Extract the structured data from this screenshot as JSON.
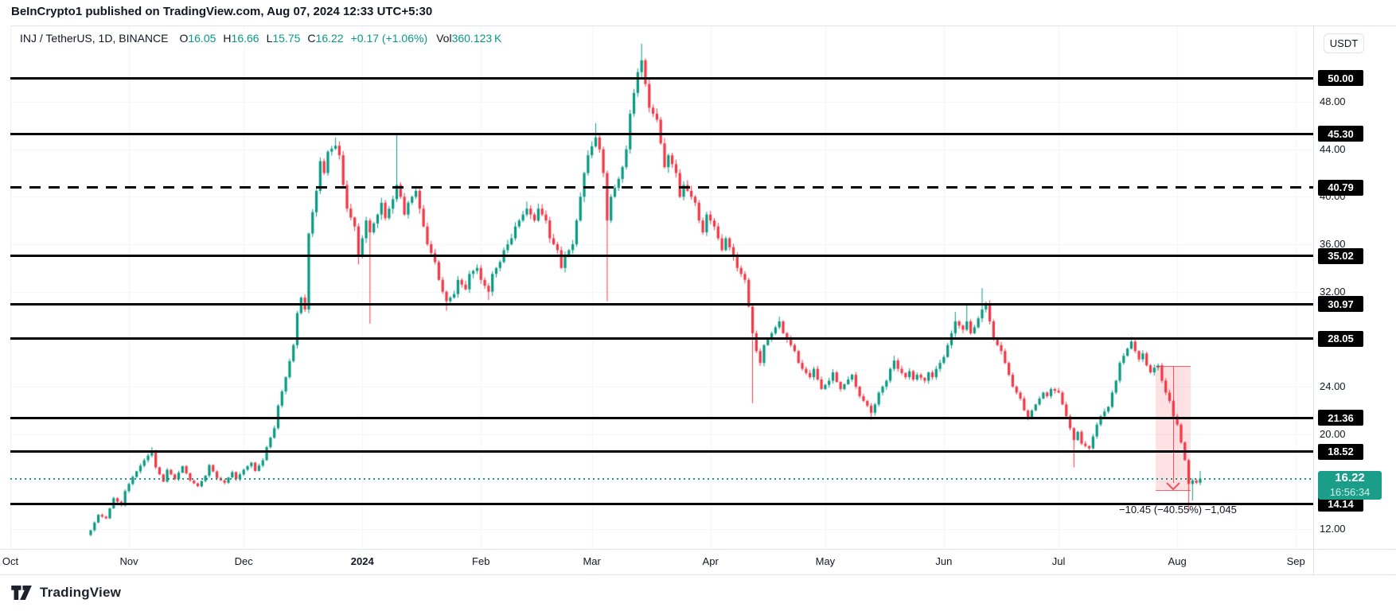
{
  "header": {
    "title": "BeInCrypto1 published on TradingView.com, Aug 07, 2024 12:33 UTC+5:30"
  },
  "legend": {
    "symbol": "INJ / TetherUS, 1D, BINANCE",
    "o_label": "O",
    "o": "16.05",
    "h_label": "H",
    "h": "16.66",
    "l_label": "L",
    "l": "15.75",
    "c_label": "C",
    "c": "16.22",
    "change": "+0.17 (+1.06%)",
    "vol_label": "Vol",
    "vol": "360.123 K"
  },
  "price_axis": {
    "currency_button": "USDT"
  },
  "footer": {
    "brand": "TradingView"
  },
  "colors": {
    "up": "#089981",
    "down": "#f23645",
    "current_label_bg": "#1a9e8a",
    "level_line": "#000000",
    "measure_fill": "rgba(242,54,69,0.15)",
    "measure_stroke": "#f23645",
    "grid": "#f0f3fa",
    "text": "#131722",
    "border": "#e0e3eb"
  },
  "chart_data": {
    "type": "candlestick",
    "symbol": "INJ / TetherUS",
    "interval": "1D",
    "exchange": "BINANCE",
    "last_candle": {
      "open": 16.05,
      "high": 16.66,
      "low": 15.75,
      "close": 16.22,
      "change": "+0.17 (+1.06%)",
      "volume": "360.123 K"
    },
    "current": {
      "price": 16.22,
      "label": "16.22",
      "countdown": "16:56:34"
    },
    "axis": {
      "price_ticks": [
        {
          "label": "48.00",
          "price": 48
        },
        {
          "label": "44.00",
          "price": 44
        },
        {
          "label": "40.00",
          "price": 40
        },
        {
          "label": "36.00",
          "price": 36
        },
        {
          "label": "32.00",
          "price": 32
        },
        {
          "label": "24.00",
          "price": 24
        },
        {
          "label": "20.00",
          "price": 20
        },
        {
          "label": "12.00",
          "price": 12
        }
      ],
      "grid_prices": [
        48,
        44,
        40,
        36,
        32,
        28,
        24,
        20,
        16,
        12
      ],
      "time_labels": [
        {
          "label": "Oct",
          "day": 0
        },
        {
          "label": "Nov",
          "day": 31
        },
        {
          "label": "Dec",
          "day": 61
        },
        {
          "label": "2024",
          "day": 92,
          "bold": true
        },
        {
          "label": "Feb",
          "day": 123
        },
        {
          "label": "Mar",
          "day": 152
        },
        {
          "label": "Apr",
          "day": 183
        },
        {
          "label": "May",
          "day": 213
        },
        {
          "label": "Jun",
          "day": 244
        },
        {
          "label": "Jul",
          "day": 274
        },
        {
          "label": "Aug",
          "day": 305
        },
        {
          "label": "Sep",
          "day": 336
        }
      ]
    },
    "levels": [
      {
        "label": "50.00",
        "price": 50.0,
        "style": "solid"
      },
      {
        "label": "45.30",
        "price": 45.3,
        "style": "solid"
      },
      {
        "label": "40.79",
        "price": 40.79,
        "style": "dashed"
      },
      {
        "label": "35.02",
        "price": 35.02,
        "style": "solid"
      },
      {
        "label": "30.97",
        "price": 30.97,
        "style": "solid"
      },
      {
        "label": "28.05",
        "price": 28.05,
        "style": "solid"
      },
      {
        "label": "21.36",
        "price": 21.36,
        "style": "solid"
      },
      {
        "label": "18.52",
        "price": 18.52,
        "style": "solid"
      },
      {
        "label": "14.14",
        "price": 14.14,
        "style": "solid"
      }
    ],
    "measure": {
      "day_start": 299.4,
      "day_end": 308.6,
      "price_start": 25.77,
      "price_end": 15.32,
      "label": "−10.45 (−40.55%) −1,045"
    },
    "price_path": [
      [
        21,
        11.9,
        null,
        11.4
      ],
      [
        23,
        13.2
      ],
      [
        25,
        12.9
      ],
      [
        27,
        14.6
      ],
      [
        29,
        14.0
      ],
      [
        30,
        15.2
      ],
      [
        32,
        16.4
      ],
      [
        35,
        17.8
      ],
      [
        37,
        18.6,
        18.9
      ],
      [
        38,
        17.2
      ],
      [
        40,
        16.0
      ],
      [
        41,
        17.0
      ],
      [
        43,
        16.2
      ],
      [
        45,
        17.3
      ],
      [
        47,
        16.1
      ],
      [
        49,
        15.6
      ],
      [
        51,
        16.5
      ],
      [
        52,
        17.4
      ],
      [
        54,
        16.3
      ],
      [
        56,
        15.9
      ],
      [
        58,
        16.8
      ],
      [
        59,
        16.2
      ],
      [
        61,
        17.0
      ],
      [
        63,
        17.6
      ],
      [
        64,
        16.9
      ],
      [
        66,
        17.8
      ],
      [
        67,
        18.9
      ],
      [
        69,
        20.5
      ],
      [
        70,
        22.4
      ],
      [
        72,
        24.8
      ],
      [
        74,
        27.5
      ],
      [
        75,
        30.2
      ],
      [
        76,
        31.5
      ],
      [
        77,
        30.5
      ],
      [
        78,
        36.9
      ],
      [
        80,
        40.5
      ],
      [
        81,
        43.0
      ],
      [
        82,
        42.0
      ],
      [
        83,
        43.8
      ],
      [
        85,
        44.3,
        45.0
      ],
      [
        86,
        43.5
      ],
      [
        87,
        41.0
      ],
      [
        88,
        39.0
      ],
      [
        90,
        37.5
      ],
      [
        91,
        35.0,
        null,
        34.3
      ],
      [
        92,
        36.5
      ],
      [
        93,
        38.0
      ],
      [
        94,
        37.0,
        null,
        29.3
      ],
      [
        96,
        38.5
      ],
      [
        97,
        39.5
      ],
      [
        98,
        38.2
      ],
      [
        100,
        39.8
      ],
      [
        101,
        41.0,
        45.3
      ],
      [
        102,
        40.0
      ],
      [
        103,
        38.5
      ],
      [
        104,
        39.5
      ],
      [
        106,
        40.5
      ],
      [
        107,
        39.0
      ],
      [
        108,
        37.5
      ],
      [
        109,
        36.0
      ],
      [
        111,
        34.5
      ],
      [
        112,
        33.0
      ],
      [
        113,
        32.0
      ],
      [
        114,
        31.2,
        null,
        30.4
      ],
      [
        116,
        31.8
      ],
      [
        117,
        33.0
      ],
      [
        119,
        32.2
      ],
      [
        120,
        33.5
      ],
      [
        122,
        34.0
      ],
      [
        123,
        33.0
      ],
      [
        125,
        32.0,
        null,
        31.3
      ],
      [
        126,
        33.5
      ],
      [
        128,
        34.5
      ],
      [
        129,
        35.5
      ],
      [
        131,
        36.5
      ],
      [
        132,
        37.5
      ],
      [
        134,
        38.5
      ],
      [
        135,
        39.0,
        39.6
      ],
      [
        137,
        38.0
      ],
      [
        138,
        39.0
      ],
      [
        140,
        38.0
      ],
      [
        141,
        36.5
      ],
      [
        143,
        35.5
      ],
      [
        144,
        34.0
      ],
      [
        145,
        35.0
      ],
      [
        147,
        36.0
      ],
      [
        148,
        38.0
      ],
      [
        149,
        40.0
      ],
      [
        150,
        42.0
      ],
      [
        151,
        43.5
      ],
      [
        153,
        45.0,
        46.2
      ],
      [
        154,
        44.0
      ],
      [
        155,
        42.0
      ],
      [
        156,
        38.0,
        null,
        31.2
      ],
      [
        157,
        40.0
      ],
      [
        159,
        41.5
      ],
      [
        160,
        42.5
      ],
      [
        161,
        44.0
      ],
      [
        162,
        47.0
      ],
      [
        164,
        50.5
      ],
      [
        165,
        51.5,
        52.9
      ],
      [
        166,
        49.5
      ],
      [
        167,
        47.5
      ],
      [
        169,
        46.5
      ],
      [
        170,
        44.5
      ],
      [
        171,
        42.5
      ],
      [
        172,
        43.5
      ],
      [
        174,
        42.0
      ],
      [
        175,
        40.0
      ],
      [
        176,
        41.0
      ],
      [
        177,
        40.5,
        41.4
      ],
      [
        179,
        39.5
      ],
      [
        180,
        38.0
      ],
      [
        181,
        37.0
      ],
      [
        182,
        38.5
      ],
      [
        184,
        37.5
      ],
      [
        185,
        36.5
      ],
      [
        186,
        35.5
      ],
      [
        187,
        36.5
      ],
      [
        189,
        35.0
      ],
      [
        190,
        34.0
      ],
      [
        191,
        33.5
      ],
      [
        192,
        33.0
      ],
      [
        194,
        28.5,
        null,
        22.6
      ],
      [
        195,
        27.0
      ],
      [
        196,
        26.0
      ],
      [
        197,
        27.5
      ],
      [
        199,
        28.5
      ],
      [
        200,
        29.0
      ],
      [
        201,
        29.5,
        29.9
      ],
      [
        202,
        28.5
      ],
      [
        204,
        27.5
      ],
      [
        205,
        27.0
      ],
      [
        206,
        26.0
      ],
      [
        207,
        25.5
      ],
      [
        209,
        24.8
      ],
      [
        210,
        25.5
      ],
      [
        211,
        24.6
      ],
      [
        212,
        23.8
      ],
      [
        214,
        24.5
      ],
      [
        215,
        25.2
      ],
      [
        216,
        24.4
      ],
      [
        217,
        23.8
      ],
      [
        219,
        24.6
      ],
      [
        220,
        25.0
      ],
      [
        221,
        24.0
      ],
      [
        222,
        23.2
      ],
      [
        224,
        22.4
      ],
      [
        225,
        21.8,
        null,
        21.2
      ],
      [
        226,
        22.5
      ],
      [
        227,
        23.5
      ],
      [
        229,
        24.5
      ],
      [
        230,
        25.5
      ],
      [
        231,
        26.2,
        26.6
      ],
      [
        232,
        25.5
      ],
      [
        234,
        24.8
      ],
      [
        235,
        25.3
      ],
      [
        236,
        24.6
      ],
      [
        237,
        25.0
      ],
      [
        239,
        24.5
      ],
      [
        240,
        25.2
      ],
      [
        241,
        24.8
      ],
      [
        242,
        25.5
      ],
      [
        244,
        26.5
      ],
      [
        245,
        27.5
      ],
      [
        246,
        28.5
      ],
      [
        247,
        29.5,
        30.3
      ],
      [
        249,
        28.8
      ],
      [
        250,
        29.5,
        31.0
      ],
      [
        251,
        28.5
      ],
      [
        252,
        29.0
      ],
      [
        254,
        30.5,
        32.3
      ],
      [
        255,
        31.0
      ],
      [
        256,
        29.5
      ],
      [
        257,
        28.0
      ],
      [
        259,
        27.0
      ],
      [
        260,
        26.0
      ],
      [
        261,
        25.0
      ],
      [
        262,
        24.0
      ],
      [
        264,
        23.0
      ],
      [
        265,
        22.0
      ],
      [
        266,
        21.3
      ],
      [
        267,
        22.0
      ],
      [
        269,
        23.0
      ],
      [
        270,
        23.5
      ],
      [
        271,
        23.2
      ],
      [
        272,
        23.8
      ],
      [
        274,
        23.5
      ],
      [
        275,
        22.5
      ],
      [
        277,
        20.5
      ],
      [
        278,
        19.5,
        null,
        17.2
      ],
      [
        279,
        20.2
      ],
      [
        280,
        19.2
      ],
      [
        282,
        18.8
      ],
      [
        283,
        19.8
      ],
      [
        284,
        20.8
      ],
      [
        285,
        21.5
      ],
      [
        287,
        22.3
      ],
      [
        288,
        23.5
      ],
      [
        289,
        24.5
      ],
      [
        290,
        26.0
      ],
      [
        292,
        27.2
      ],
      [
        293,
        27.8,
        28.2
      ],
      [
        294,
        27.0
      ],
      [
        295,
        26.3
      ],
      [
        296,
        26.8
      ],
      [
        297,
        25.8
      ],
      [
        298,
        25.2
      ],
      [
        299,
        25.6
      ],
      [
        300,
        25.8
      ],
      [
        301,
        24.5
      ],
      [
        302,
        23.5
      ],
      [
        303,
        22.8
      ],
      [
        304,
        21.5
      ],
      [
        305,
        20.8
      ],
      [
        306,
        19.3
      ],
      [
        307,
        17.8
      ],
      [
        308,
        15.8,
        null,
        13.5
      ],
      [
        309,
        16.1,
        null,
        14.4
      ],
      [
        310,
        15.9
      ],
      [
        311,
        16.22,
        16.9,
        15.7
      ]
    ]
  }
}
